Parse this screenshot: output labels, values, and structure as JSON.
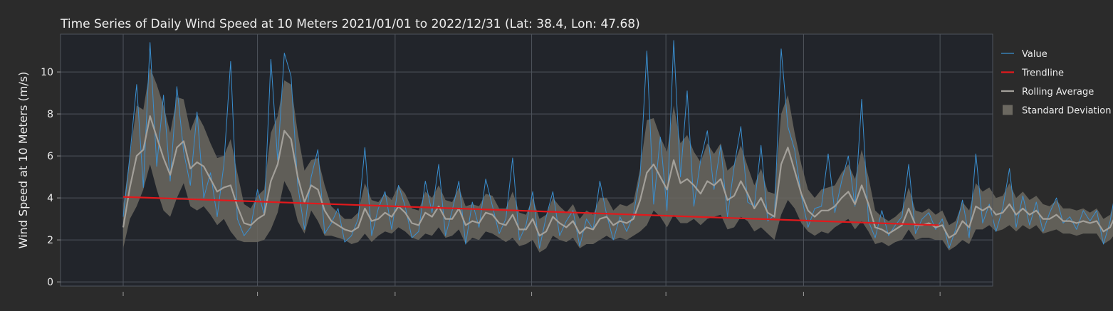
{
  "chart_data": {
    "type": "line",
    "title": "Time Series of Daily Wind Speed at 10 Meters 2021/01/01 to 2022/12/31 (Lat: 38.4, Lon: 47.68)",
    "ylabel": "Wind Speed at 10 Meters (m/s)",
    "xlabel": "",
    "ylim": [
      -0.2,
      11.8
    ],
    "xlim": [
      "2020-11-06",
      "2023-02-17"
    ],
    "yticks": [
      0,
      2,
      4,
      6,
      8,
      10
    ],
    "x_gridlines": [
      "2021-01-01",
      "2021-05-01",
      "2021-09-01",
      "2022-01-01",
      "2022-05-01",
      "2022-09-01",
      "2023-01-01"
    ],
    "x_tick_labels": [],
    "grid": true,
    "legend_position": "right",
    "colors": {
      "figure_bg": "#2b2b2b",
      "plot_bg": "#22252b",
      "value": "#3a8fd0",
      "trendline": "#e3191c",
      "rolling": "#a3a09a",
      "band": "#6b6860",
      "grid": "#4f545c",
      "text": "#ececec"
    },
    "legend": [
      {
        "label": "Value",
        "style": "thin-line",
        "color": "#3a8fd0"
      },
      {
        "label": "Trendline",
        "style": "thick-line",
        "color": "#e3191c"
      },
      {
        "label": "Rolling Average",
        "style": "line",
        "color": "#a3a09a"
      },
      {
        "label": "Standard Deviation",
        "style": "patch",
        "color": "#6b6860"
      }
    ],
    "trendline": {
      "x": [
        "2021-01-01",
        "2022-12-31"
      ],
      "y": [
        4.05,
        2.7
      ]
    },
    "series": [
      {
        "name": "Value",
        "x_start": "2021-01-01",
        "step_days": 6,
        "values": [
          3.1,
          6.0,
          9.4,
          4.5,
          11.4,
          5.5,
          8.9,
          4.8,
          9.3,
          6.2,
          4.6,
          8.1,
          4.0,
          5.2,
          3.1,
          5.6,
          10.5,
          3.0,
          2.2,
          2.6,
          4.4,
          3.2,
          10.6,
          5.8,
          10.9,
          9.8,
          4.6,
          2.5,
          5.0,
          6.3,
          2.3,
          2.8,
          3.5,
          1.9,
          2.2,
          3.0,
          6.4,
          2.2,
          3.5,
          4.3,
          2.5,
          4.6,
          3.6,
          2.1,
          2.4,
          4.8,
          3.3,
          5.6,
          2.2,
          3.4,
          4.8,
          1.8,
          3.8,
          2.6,
          4.9,
          3.6,
          2.3,
          3.0,
          5.9,
          2.0,
          2.7,
          4.3,
          1.6,
          3.1,
          4.3,
          2.2,
          2.9,
          3.4,
          1.7,
          3.0,
          2.5,
          4.8,
          3.2,
          2.0,
          3.1,
          2.4,
          3.2,
          5.1,
          11.0,
          3.7,
          6.9,
          3.4,
          11.5,
          5.0,
          9.1,
          3.6,
          5.8,
          7.2,
          4.4,
          6.5,
          3.1,
          5.5,
          7.4,
          3.8,
          3.6,
          6.5,
          2.9,
          3.2,
          11.1,
          7.4,
          6.3,
          4.1,
          2.6,
          3.5,
          3.6,
          6.1,
          3.3,
          4.8,
          6.0,
          3.6,
          8.7,
          2.9,
          2.1,
          3.4,
          2.2,
          2.7,
          3.1,
          5.6,
          2.3,
          3.0,
          3.3,
          2.5,
          3.0,
          1.6,
          2.5,
          3.9,
          2.1,
          6.1,
          2.8,
          3.7,
          2.4,
          3.5,
          5.4,
          2.6,
          4.1,
          2.7,
          3.8,
          2.4,
          3.3,
          4.0,
          2.8,
          3.1,
          2.5,
          3.4,
          2.9,
          3.4,
          1.8,
          2.9,
          4.7,
          1.9,
          3.4,
          4.8,
          1.9,
          2.6,
          3.1,
          2.4,
          3.5,
          2.0,
          2.5,
          5.3,
          1.9,
          2.5,
          6.8,
          2.3,
          3.8,
          6.0,
          2.1,
          8.2,
          3.8,
          6.6,
          2.4,
          2.6,
          1.7,
          6.1,
          1.9,
          3.2,
          4.0,
          2.4
        ]
      },
      {
        "name": "Rolling Average",
        "x_start": "2021-01-01",
        "step_days": 6,
        "values": [
          2.6,
          4.5,
          6.0,
          6.3,
          7.9,
          6.9,
          5.9,
          5.1,
          6.4,
          6.7,
          5.4,
          5.7,
          5.5,
          4.9,
          4.3,
          4.5,
          4.6,
          3.6,
          2.8,
          2.7,
          3.0,
          3.2,
          4.8,
          5.6,
          7.2,
          6.8,
          5.0,
          3.8,
          4.6,
          4.4,
          3.4,
          2.9,
          2.7,
          2.5,
          2.4,
          2.6,
          3.5,
          2.9,
          3.0,
          3.3,
          3.1,
          3.6,
          3.3,
          2.8,
          2.7,
          3.3,
          3.1,
          3.6,
          3.0,
          3.0,
          3.5,
          2.7,
          2.9,
          2.8,
          3.3,
          3.2,
          2.8,
          2.7,
          3.2,
          2.5,
          2.5,
          3.0,
          2.2,
          2.4,
          3.1,
          2.8,
          2.6,
          2.9,
          2.3,
          2.6,
          2.5,
          3.0,
          3.1,
          2.7,
          2.9,
          2.8,
          3.0,
          3.9,
          5.2,
          5.6,
          5.0,
          4.4,
          5.8,
          4.7,
          4.9,
          4.6,
          4.2,
          4.8,
          4.6,
          4.9,
          3.9,
          4.1,
          4.8,
          4.2,
          3.5,
          4.0,
          3.3,
          3.1,
          5.6,
          6.4,
          5.3,
          4.2,
          3.4,
          3.1,
          3.4,
          3.4,
          3.6,
          4.0,
          4.3,
          3.7,
          4.6,
          3.7,
          2.6,
          2.5,
          2.3,
          2.5,
          2.7,
          3.5,
          2.7,
          2.7,
          2.8,
          2.6,
          2.7,
          2.1,
          2.3,
          2.9,
          2.6,
          3.6,
          3.4,
          3.6,
          3.2,
          3.3,
          3.7,
          3.2,
          3.5,
          3.2,
          3.4,
          3.0,
          3.0,
          3.2,
          2.9,
          2.9,
          2.8,
          2.9,
          2.8,
          2.9,
          2.4,
          2.6,
          3.3,
          2.6,
          2.9,
          3.5,
          2.5,
          2.6,
          2.8,
          2.5,
          2.9,
          2.4,
          2.5,
          3.4,
          2.6,
          2.6,
          4.1,
          3.1,
          3.5,
          4.2,
          3.0,
          5.1,
          4.3,
          4.8,
          3.4,
          2.6,
          2.1,
          3.4,
          2.6,
          2.3,
          2.8,
          2.1
        ]
      },
      {
        "name": "Standard Deviation",
        "x_start": "2021-01-01",
        "step_days": 6,
        "values": [
          1.0,
          1.5,
          2.4,
          1.9,
          2.3,
          2.5,
          2.5,
          2.0,
          2.4,
          2.0,
          1.8,
          2.3,
          1.9,
          1.7,
          1.6,
          1.5,
          2.2,
          1.6,
          0.9,
          0.8,
          1.1,
          1.2,
          2.3,
          2.3,
          2.4,
          2.6,
          2.1,
          1.5,
          1.2,
          1.5,
          1.2,
          0.7,
          0.6,
          0.5,
          0.6,
          0.7,
          1.2,
          1.0,
          0.8,
          0.9,
          0.8,
          1.0,
          0.9,
          0.7,
          0.7,
          1.0,
          0.9,
          1.0,
          0.9,
          0.8,
          1.0,
          0.9,
          0.8,
          0.8,
          0.9,
          0.9,
          0.7,
          0.8,
          1.1,
          0.8,
          0.7,
          1.0,
          0.8,
          0.8,
          0.9,
          0.8,
          0.7,
          0.8,
          0.7,
          0.8,
          0.7,
          1.0,
          0.9,
          0.7,
          0.8,
          0.8,
          0.8,
          1.5,
          2.5,
          2.2,
          1.9,
          1.8,
          2.6,
          1.9,
          2.1,
          1.6,
          1.5,
          1.8,
          1.5,
          1.7,
          1.4,
          1.5,
          1.7,
          1.3,
          1.1,
          1.4,
          1.0,
          1.1,
          2.4,
          2.5,
          1.8,
          1.4,
          1.0,
          0.9,
          1.0,
          1.1,
          1.0,
          1.2,
          1.3,
          1.2,
          1.7,
          1.3,
          0.8,
          0.6,
          0.6,
          0.6,
          0.7,
          1.0,
          0.7,
          0.6,
          0.7,
          0.6,
          0.7,
          0.6,
          0.6,
          0.9,
          0.8,
          1.1,
          0.9,
          0.9,
          0.8,
          0.8,
          1.0,
          0.8,
          0.8,
          0.7,
          0.7,
          0.7,
          0.6,
          0.7,
          0.6,
          0.6,
          0.6,
          0.6,
          0.5,
          0.6,
          0.6,
          0.6,
          0.9,
          0.8,
          0.8,
          1.0,
          0.8,
          0.6,
          0.7,
          0.7,
          0.7,
          0.6,
          0.7,
          1.0,
          0.8,
          0.8,
          1.5,
          1.3,
          1.1,
          1.5,
          1.2,
          1.7,
          1.5,
          1.6,
          1.3,
          0.8,
          0.7,
          1.3,
          1.0,
          0.8,
          1.0,
          0.7
        ]
      }
    ]
  }
}
